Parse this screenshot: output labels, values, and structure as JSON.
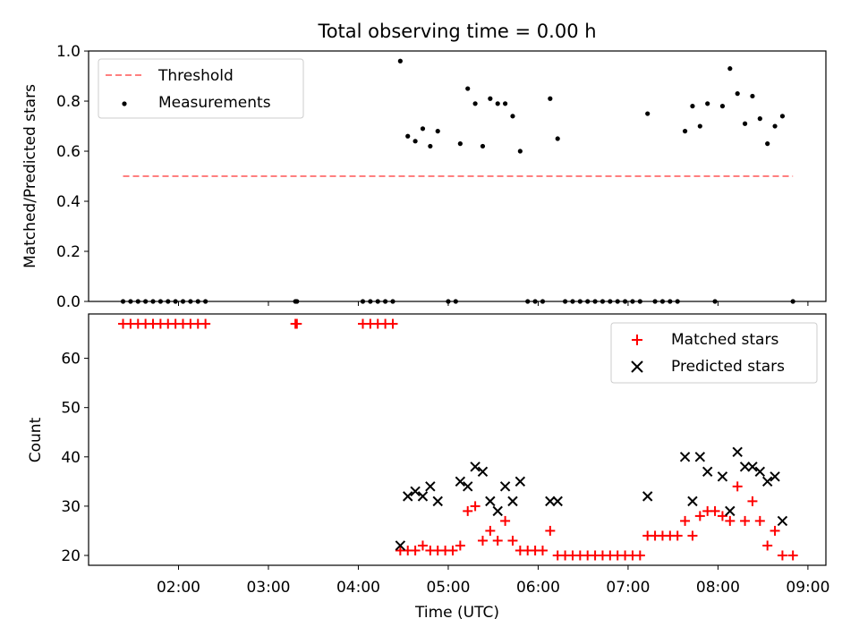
{
  "title": "Total observing time = 0.00 h",
  "chart_data": [
    {
      "type": "scatter",
      "ylabel": "Matched/Predicted stars",
      "xlim": [
        "01:00",
        "09:12"
      ],
      "ylim": [
        0,
        1.0
      ],
      "y_ticks": [
        "0.0",
        "0.2",
        "0.4",
        "0.6",
        "0.8",
        "1.0"
      ],
      "legend": {
        "position": "top-left",
        "entries": [
          "Threshold",
          "Measurements"
        ]
      },
      "threshold": {
        "name": "Threshold",
        "value": 0.5,
        "x_start": "01:23",
        "x_end": "08:50",
        "color": "#ff7f7f"
      },
      "series": [
        {
          "name": "Measurements",
          "color": "#000000",
          "points": [
            [
              "01:23",
              0
            ],
            [
              "01:28",
              0
            ],
            [
              "01:33",
              0
            ],
            [
              "01:38",
              0
            ],
            [
              "01:43",
              0
            ],
            [
              "01:48",
              0
            ],
            [
              "01:53",
              0
            ],
            [
              "01:58",
              0
            ],
            [
              "02:03",
              0
            ],
            [
              "02:08",
              0
            ],
            [
              "02:13",
              0
            ],
            [
              "02:18",
              0
            ],
            [
              "03:18",
              0
            ],
            [
              "03:19",
              0
            ],
            [
              "04:03",
              0
            ],
            [
              "04:08",
              0
            ],
            [
              "04:13",
              0
            ],
            [
              "04:18",
              0
            ],
            [
              "04:23",
              0
            ],
            [
              "04:28",
              0.96
            ],
            [
              "04:33",
              0.66
            ],
            [
              "04:38",
              0.64
            ],
            [
              "04:43",
              0.69
            ],
            [
              "04:48",
              0.62
            ],
            [
              "04:53",
              0.68
            ],
            [
              "05:00",
              0
            ],
            [
              "05:05",
              0
            ],
            [
              "05:08",
              0.63
            ],
            [
              "05:13",
              0.85
            ],
            [
              "05:18",
              0.79
            ],
            [
              "05:23",
              0.62
            ],
            [
              "05:28",
              0.81
            ],
            [
              "05:33",
              0.79
            ],
            [
              "05:38",
              0.79
            ],
            [
              "05:43",
              0.74
            ],
            [
              "05:48",
              0.6
            ],
            [
              "05:53",
              0
            ],
            [
              "05:58",
              0
            ],
            [
              "06:03",
              0
            ],
            [
              "06:08",
              0.81
            ],
            [
              "06:13",
              0.65
            ],
            [
              "06:18",
              0
            ],
            [
              "06:23",
              0
            ],
            [
              "06:28",
              0
            ],
            [
              "06:33",
              0
            ],
            [
              "06:38",
              0
            ],
            [
              "06:43",
              0
            ],
            [
              "06:48",
              0
            ],
            [
              "06:53",
              0
            ],
            [
              "06:58",
              0
            ],
            [
              "07:03",
              0
            ],
            [
              "07:08",
              0
            ],
            [
              "07:13",
              0.75
            ],
            [
              "07:18",
              0
            ],
            [
              "07:23",
              0
            ],
            [
              "07:28",
              0
            ],
            [
              "07:33",
              0
            ],
            [
              "07:38",
              0.68
            ],
            [
              "07:43",
              0.78
            ],
            [
              "07:48",
              0.7
            ],
            [
              "07:53",
              0.79
            ],
            [
              "07:58",
              0
            ],
            [
              "08:03",
              0.78
            ],
            [
              "08:08",
              0.93
            ],
            [
              "08:13",
              0.83
            ],
            [
              "08:18",
              0.71
            ],
            [
              "08:23",
              0.82
            ],
            [
              "08:28",
              0.73
            ],
            [
              "08:33",
              0.63
            ],
            [
              "08:38",
              0.7
            ],
            [
              "08:43",
              0.74
            ],
            [
              "08:50",
              0
            ]
          ]
        }
      ]
    },
    {
      "type": "scatter",
      "xlabel": "Time (UTC)",
      "ylabel": "Count",
      "xlim": [
        "01:00",
        "09:12"
      ],
      "ylim": [
        18,
        69
      ],
      "x_ticks": [
        "02:00",
        "03:00",
        "04:00",
        "05:00",
        "06:00",
        "07:00",
        "08:00",
        "09:00"
      ],
      "y_ticks": [
        "20",
        "30",
        "40",
        "50",
        "60"
      ],
      "legend": {
        "position": "top-right",
        "entries": [
          "Matched stars",
          "Predicted stars"
        ]
      },
      "series": [
        {
          "name": "Matched stars",
          "color": "#ff0000",
          "marker": "plus",
          "points": [
            [
              "01:23",
              67
            ],
            [
              "01:28",
              67
            ],
            [
              "01:33",
              67
            ],
            [
              "01:38",
              67
            ],
            [
              "01:43",
              67
            ],
            [
              "01:48",
              67
            ],
            [
              "01:53",
              67
            ],
            [
              "01:58",
              67
            ],
            [
              "02:03",
              67
            ],
            [
              "02:08",
              67
            ],
            [
              "02:13",
              67
            ],
            [
              "02:18",
              67
            ],
            [
              "03:18",
              67
            ],
            [
              "03:19",
              67
            ],
            [
              "04:03",
              67
            ],
            [
              "04:08",
              67
            ],
            [
              "04:13",
              67
            ],
            [
              "04:18",
              67
            ],
            [
              "04:23",
              67
            ],
            [
              "04:28",
              21
            ],
            [
              "04:33",
              21
            ],
            [
              "04:38",
              21
            ],
            [
              "04:43",
              22
            ],
            [
              "04:48",
              21
            ],
            [
              "04:53",
              21
            ],
            [
              "04:58",
              21
            ],
            [
              "05:03",
              21
            ],
            [
              "05:08",
              22
            ],
            [
              "05:13",
              29
            ],
            [
              "05:18",
              30
            ],
            [
              "05:23",
              23
            ],
            [
              "05:28",
              25
            ],
            [
              "05:33",
              23
            ],
            [
              "05:38",
              27
            ],
            [
              "05:43",
              23
            ],
            [
              "05:48",
              21
            ],
            [
              "05:53",
              21
            ],
            [
              "05:58",
              21
            ],
            [
              "06:03",
              21
            ],
            [
              "06:08",
              25
            ],
            [
              "06:13",
              20
            ],
            [
              "06:18",
              20
            ],
            [
              "06:23",
              20
            ],
            [
              "06:28",
              20
            ],
            [
              "06:33",
              20
            ],
            [
              "06:38",
              20
            ],
            [
              "06:43",
              20
            ],
            [
              "06:48",
              20
            ],
            [
              "06:53",
              20
            ],
            [
              "06:58",
              20
            ],
            [
              "07:03",
              20
            ],
            [
              "07:08",
              20
            ],
            [
              "07:13",
              24
            ],
            [
              "07:18",
              24
            ],
            [
              "07:23",
              24
            ],
            [
              "07:28",
              24
            ],
            [
              "07:33",
              24
            ],
            [
              "07:38",
              27
            ],
            [
              "07:43",
              24
            ],
            [
              "07:48",
              28
            ],
            [
              "07:53",
              29
            ],
            [
              "07:58",
              29
            ],
            [
              "08:03",
              28
            ],
            [
              "08:08",
              27
            ],
            [
              "08:13",
              34
            ],
            [
              "08:18",
              27
            ],
            [
              "08:23",
              31
            ],
            [
              "08:28",
              27
            ],
            [
              "08:33",
              22
            ],
            [
              "08:38",
              25
            ],
            [
              "08:43",
              20
            ],
            [
              "08:50",
              20
            ]
          ]
        },
        {
          "name": "Predicted stars",
          "color": "#000000",
          "marker": "x",
          "points": [
            [
              "04:28",
              22
            ],
            [
              "04:33",
              32
            ],
            [
              "04:38",
              33
            ],
            [
              "04:43",
              32
            ],
            [
              "04:48",
              34
            ],
            [
              "04:53",
              31
            ],
            [
              "05:08",
              35
            ],
            [
              "05:13",
              34
            ],
            [
              "05:18",
              38
            ],
            [
              "05:23",
              37
            ],
            [
              "05:28",
              31
            ],
            [
              "05:33",
              29
            ],
            [
              "05:38",
              34
            ],
            [
              "05:43",
              31
            ],
            [
              "05:48",
              35
            ],
            [
              "06:08",
              31
            ],
            [
              "06:13",
              31
            ],
            [
              "07:13",
              32
            ],
            [
              "07:38",
              40
            ],
            [
              "07:43",
              31
            ],
            [
              "07:48",
              40
            ],
            [
              "07:53",
              37
            ],
            [
              "08:03",
              36
            ],
            [
              "08:08",
              29
            ],
            [
              "08:13",
              41
            ],
            [
              "08:18",
              38
            ],
            [
              "08:23",
              38
            ],
            [
              "08:28",
              37
            ],
            [
              "08:33",
              35
            ],
            [
              "08:38",
              36
            ],
            [
              "08:43",
              27
            ]
          ]
        }
      ]
    }
  ]
}
